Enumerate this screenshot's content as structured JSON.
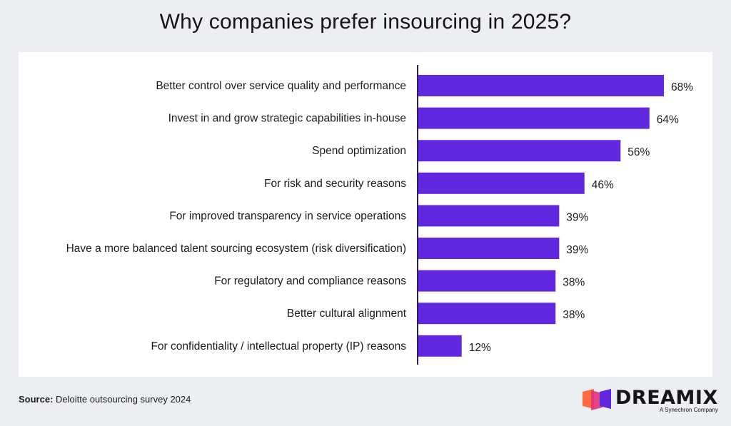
{
  "title": "Why companies prefer insourcing in 2025?",
  "source": {
    "label": "Source:",
    "text": "Deloitte outsourcing survey 2024"
  },
  "logo": {
    "wordmark": "DREAMIX",
    "tagline": "A Synechron Company"
  },
  "colors": {
    "bar": "#6128e0",
    "axis": "#2a1f5e",
    "text": "#1b1b1f",
    "logo_orange": "#ff6a3d",
    "logo_pink": "#e0327a",
    "logo_purple": "#6128e0"
  },
  "chart_data": {
    "type": "bar",
    "orientation": "horizontal",
    "title": "Why companies prefer insourcing in 2025?",
    "xlabel": "",
    "ylabel": "",
    "xlim": [
      0,
      68
    ],
    "unit": "%",
    "categories": [
      "Better control over service quality and performance",
      "Invest in and grow strategic capabilities in-house",
      "Spend optimization",
      "For risk and security reasons",
      "For improved transparency in service operations",
      "Have a more balanced talent sourcing ecosystem (risk diversification)",
      "For regulatory and compliance reasons",
      "Better cultural alignment",
      "For confidentiality / intellectual property (IP) reasons"
    ],
    "values": [
      68,
      64,
      56,
      46,
      39,
      39,
      38,
      38,
      12
    ],
    "data_labels": [
      "68%",
      "64%",
      "56%",
      "46%",
      "39%",
      "39%",
      "38%",
      "38%",
      "12%"
    ]
  }
}
